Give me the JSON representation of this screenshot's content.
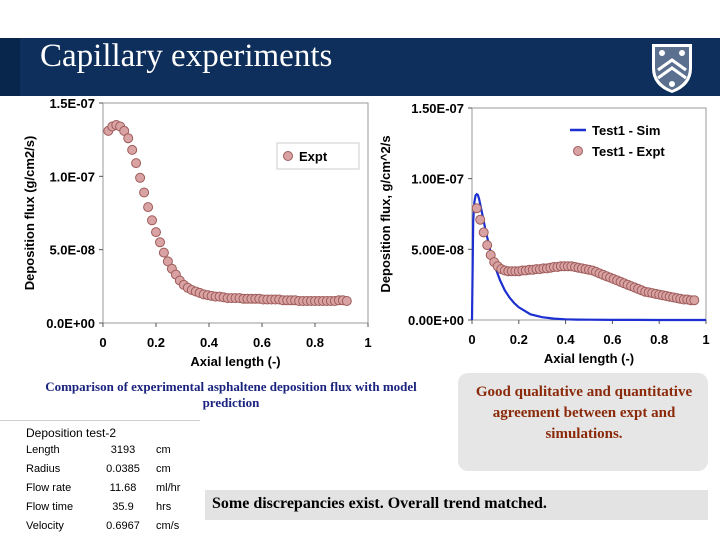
{
  "slide": {
    "title": "Capillary experiments",
    "caption": "Comparison of experimental asphaltene deposition flux with model prediction",
    "agreement": "Good qualitative and quantitative agreement between expt and simulations.",
    "discrepancy": "Some discrepancies exist. Overall trend matched.",
    "colors": {
      "title_bg": "#0e2f5c",
      "sim_line": "#1c2fd0",
      "expt_fill": "#d9a3a3",
      "expt_edge": "#9e5b5b",
      "caption": "#1a237e",
      "agreement": "#8b2a0a"
    }
  },
  "logo": {
    "icon": "university-shield-icon"
  },
  "table": {
    "title": "Deposition test-2",
    "rows": [
      {
        "name": "Length",
        "value": "3193",
        "unit": "cm"
      },
      {
        "name": "Radius",
        "value": "0.0385",
        "unit": "cm"
      },
      {
        "name": "Flow rate",
        "value": "11.68",
        "unit": "ml/hr"
      },
      {
        "name": "Flow time",
        "value": "35.9",
        "unit": "hrs"
      },
      {
        "name": "Velocity",
        "value": "0.6967",
        "unit": "cm/s"
      }
    ]
  },
  "chart_data": [
    {
      "type": "scatter",
      "title": "",
      "xlabel": "Axial length (-)",
      "ylabel": "Deposition flux (g/cm2/s)",
      "xlim": [
        0,
        1
      ],
      "ylim": [
        0,
        1.5e-07
      ],
      "xticks": [
        "0",
        "0.2",
        "0.4",
        "0.6",
        "0.8",
        "1"
      ],
      "yticks": [
        "0.0E+00",
        "5.0E-08",
        "1.0E-07",
        "1.5E-07"
      ],
      "legend": "top-right",
      "series": [
        {
          "name": "Expt",
          "x": [
            0.02,
            0.035,
            0.05,
            0.065,
            0.08,
            0.095,
            0.11,
            0.125,
            0.14,
            0.155,
            0.17,
            0.185,
            0.2,
            0.215,
            0.23,
            0.245,
            0.26,
            0.275,
            0.29,
            0.305,
            0.32,
            0.335,
            0.35,
            0.365,
            0.38,
            0.395,
            0.41,
            0.425,
            0.44,
            0.455,
            0.47,
            0.485,
            0.5,
            0.515,
            0.53,
            0.545,
            0.56,
            0.575,
            0.59,
            0.605,
            0.62,
            0.635,
            0.65,
            0.665,
            0.68,
            0.695,
            0.71,
            0.725,
            0.74,
            0.755,
            0.77,
            0.785,
            0.8,
            0.815,
            0.83,
            0.845,
            0.86,
            0.875,
            0.89,
            0.905,
            0.92
          ],
          "y": [
            1.31e-07,
            1.34e-07,
            1.35e-07,
            1.34e-07,
            1.31e-07,
            1.26e-07,
            1.18e-07,
            1.09e-07,
            9.9e-08,
            8.9e-08,
            7.9e-08,
            7e-08,
            6.2e-08,
            5.5e-08,
            4.8e-08,
            4.2e-08,
            3.7e-08,
            3.3e-08,
            2.9e-08,
            2.6e-08,
            2.4e-08,
            2.25e-08,
            2.15e-08,
            2.05e-08,
            1.95e-08,
            1.9e-08,
            1.85e-08,
            1.8e-08,
            1.8e-08,
            1.75e-08,
            1.7e-08,
            1.7e-08,
            1.7e-08,
            1.7e-08,
            1.65e-08,
            1.65e-08,
            1.65e-08,
            1.65e-08,
            1.65e-08,
            1.6e-08,
            1.6e-08,
            1.6e-08,
            1.6e-08,
            1.6e-08,
            1.55e-08,
            1.55e-08,
            1.55e-08,
            1.55e-08,
            1.5e-08,
            1.5e-08,
            1.5e-08,
            1.5e-08,
            1.5e-08,
            1.5e-08,
            1.5e-08,
            1.5e-08,
            1.5e-08,
            1.5e-08,
            1.55e-08,
            1.55e-08,
            1.5e-08
          ]
        }
      ]
    },
    {
      "type": "line",
      "title": "",
      "xlabel": "Axial length (-)",
      "ylabel": "Deposition flux, g/cm^2/s",
      "xlim": [
        0,
        1
      ],
      "ylim": [
        0,
        1.5e-07
      ],
      "xticks": [
        "0",
        "0.2",
        "0.4",
        "0.6",
        "0.8",
        "1"
      ],
      "yticks": [
        "0.00E+00",
        "5.00E-08",
        "1.00E-07",
        "1.50E-07"
      ],
      "legend": "top-right",
      "series": [
        {
          "name": "Test1 - Sim",
          "style": "line",
          "x": [
            0,
            0.005,
            0.01,
            0.015,
            0.02,
            0.025,
            0.03,
            0.035,
            0.04,
            0.05,
            0.06,
            0.07,
            0.08,
            0.1,
            0.12,
            0.14,
            0.16,
            0.18,
            0.2,
            0.25,
            0.3,
            0.35,
            0.4,
            0.45,
            0.5,
            0.6,
            0.7,
            0.8,
            0.9,
            1.0
          ],
          "y": [
            0,
            7e-08,
            8.3e-08,
            8.8e-08,
            8.9e-08,
            8.85e-08,
            8.6e-08,
            8.2e-08,
            7.8e-08,
            7e-08,
            6.2e-08,
            5.5e-08,
            4.8e-08,
            3.7e-08,
            2.8e-08,
            2.1e-08,
            1.6e-08,
            1.2e-08,
            9e-09,
            4e-09,
            2e-09,
            1e-09,
            5e-10,
            3e-10,
            2e-10,
            1e-10,
            5e-11,
            2e-11,
            1e-11,
            0
          ]
        },
        {
          "name": "Test1 - Expt",
          "style": "markers",
          "x": [
            0.02,
            0.035,
            0.05,
            0.065,
            0.08,
            0.095,
            0.11,
            0.125,
            0.14,
            0.155,
            0.17,
            0.185,
            0.2,
            0.215,
            0.23,
            0.245,
            0.26,
            0.275,
            0.29,
            0.305,
            0.32,
            0.335,
            0.35,
            0.365,
            0.38,
            0.395,
            0.41,
            0.425,
            0.44,
            0.455,
            0.47,
            0.485,
            0.5,
            0.515,
            0.53,
            0.545,
            0.56,
            0.575,
            0.59,
            0.605,
            0.62,
            0.635,
            0.65,
            0.665,
            0.68,
            0.695,
            0.71,
            0.725,
            0.74,
            0.755,
            0.77,
            0.785,
            0.8,
            0.815,
            0.83,
            0.845,
            0.86,
            0.875,
            0.89,
            0.905,
            0.92,
            0.935,
            0.95
          ],
          "y": [
            7.9e-08,
            7.1e-08,
            6.2e-08,
            5.3e-08,
            4.6e-08,
            4.1e-08,
            3.8e-08,
            3.6e-08,
            3.5e-08,
            3.45e-08,
            3.45e-08,
            3.45e-08,
            3.45e-08,
            3.5e-08,
            3.5e-08,
            3.55e-08,
            3.55e-08,
            3.6e-08,
            3.6e-08,
            3.65e-08,
            3.65e-08,
            3.7e-08,
            3.75e-08,
            3.75e-08,
            3.8e-08,
            3.8e-08,
            3.8e-08,
            3.8e-08,
            3.75e-08,
            3.7e-08,
            3.65e-08,
            3.6e-08,
            3.55e-08,
            3.5e-08,
            3.4e-08,
            3.3e-08,
            3.2e-08,
            3.1e-08,
            3e-08,
            2.9e-08,
            2.8e-08,
            2.7e-08,
            2.6e-08,
            2.5e-08,
            2.4e-08,
            2.3e-08,
            2.2e-08,
            2.1e-08,
            2e-08,
            1.95e-08,
            1.9e-08,
            1.85e-08,
            1.8e-08,
            1.75e-08,
            1.7e-08,
            1.65e-08,
            1.6e-08,
            1.55e-08,
            1.5e-08,
            1.45e-08,
            1.45e-08,
            1.4e-08,
            1.4e-08
          ]
        }
      ]
    }
  ]
}
